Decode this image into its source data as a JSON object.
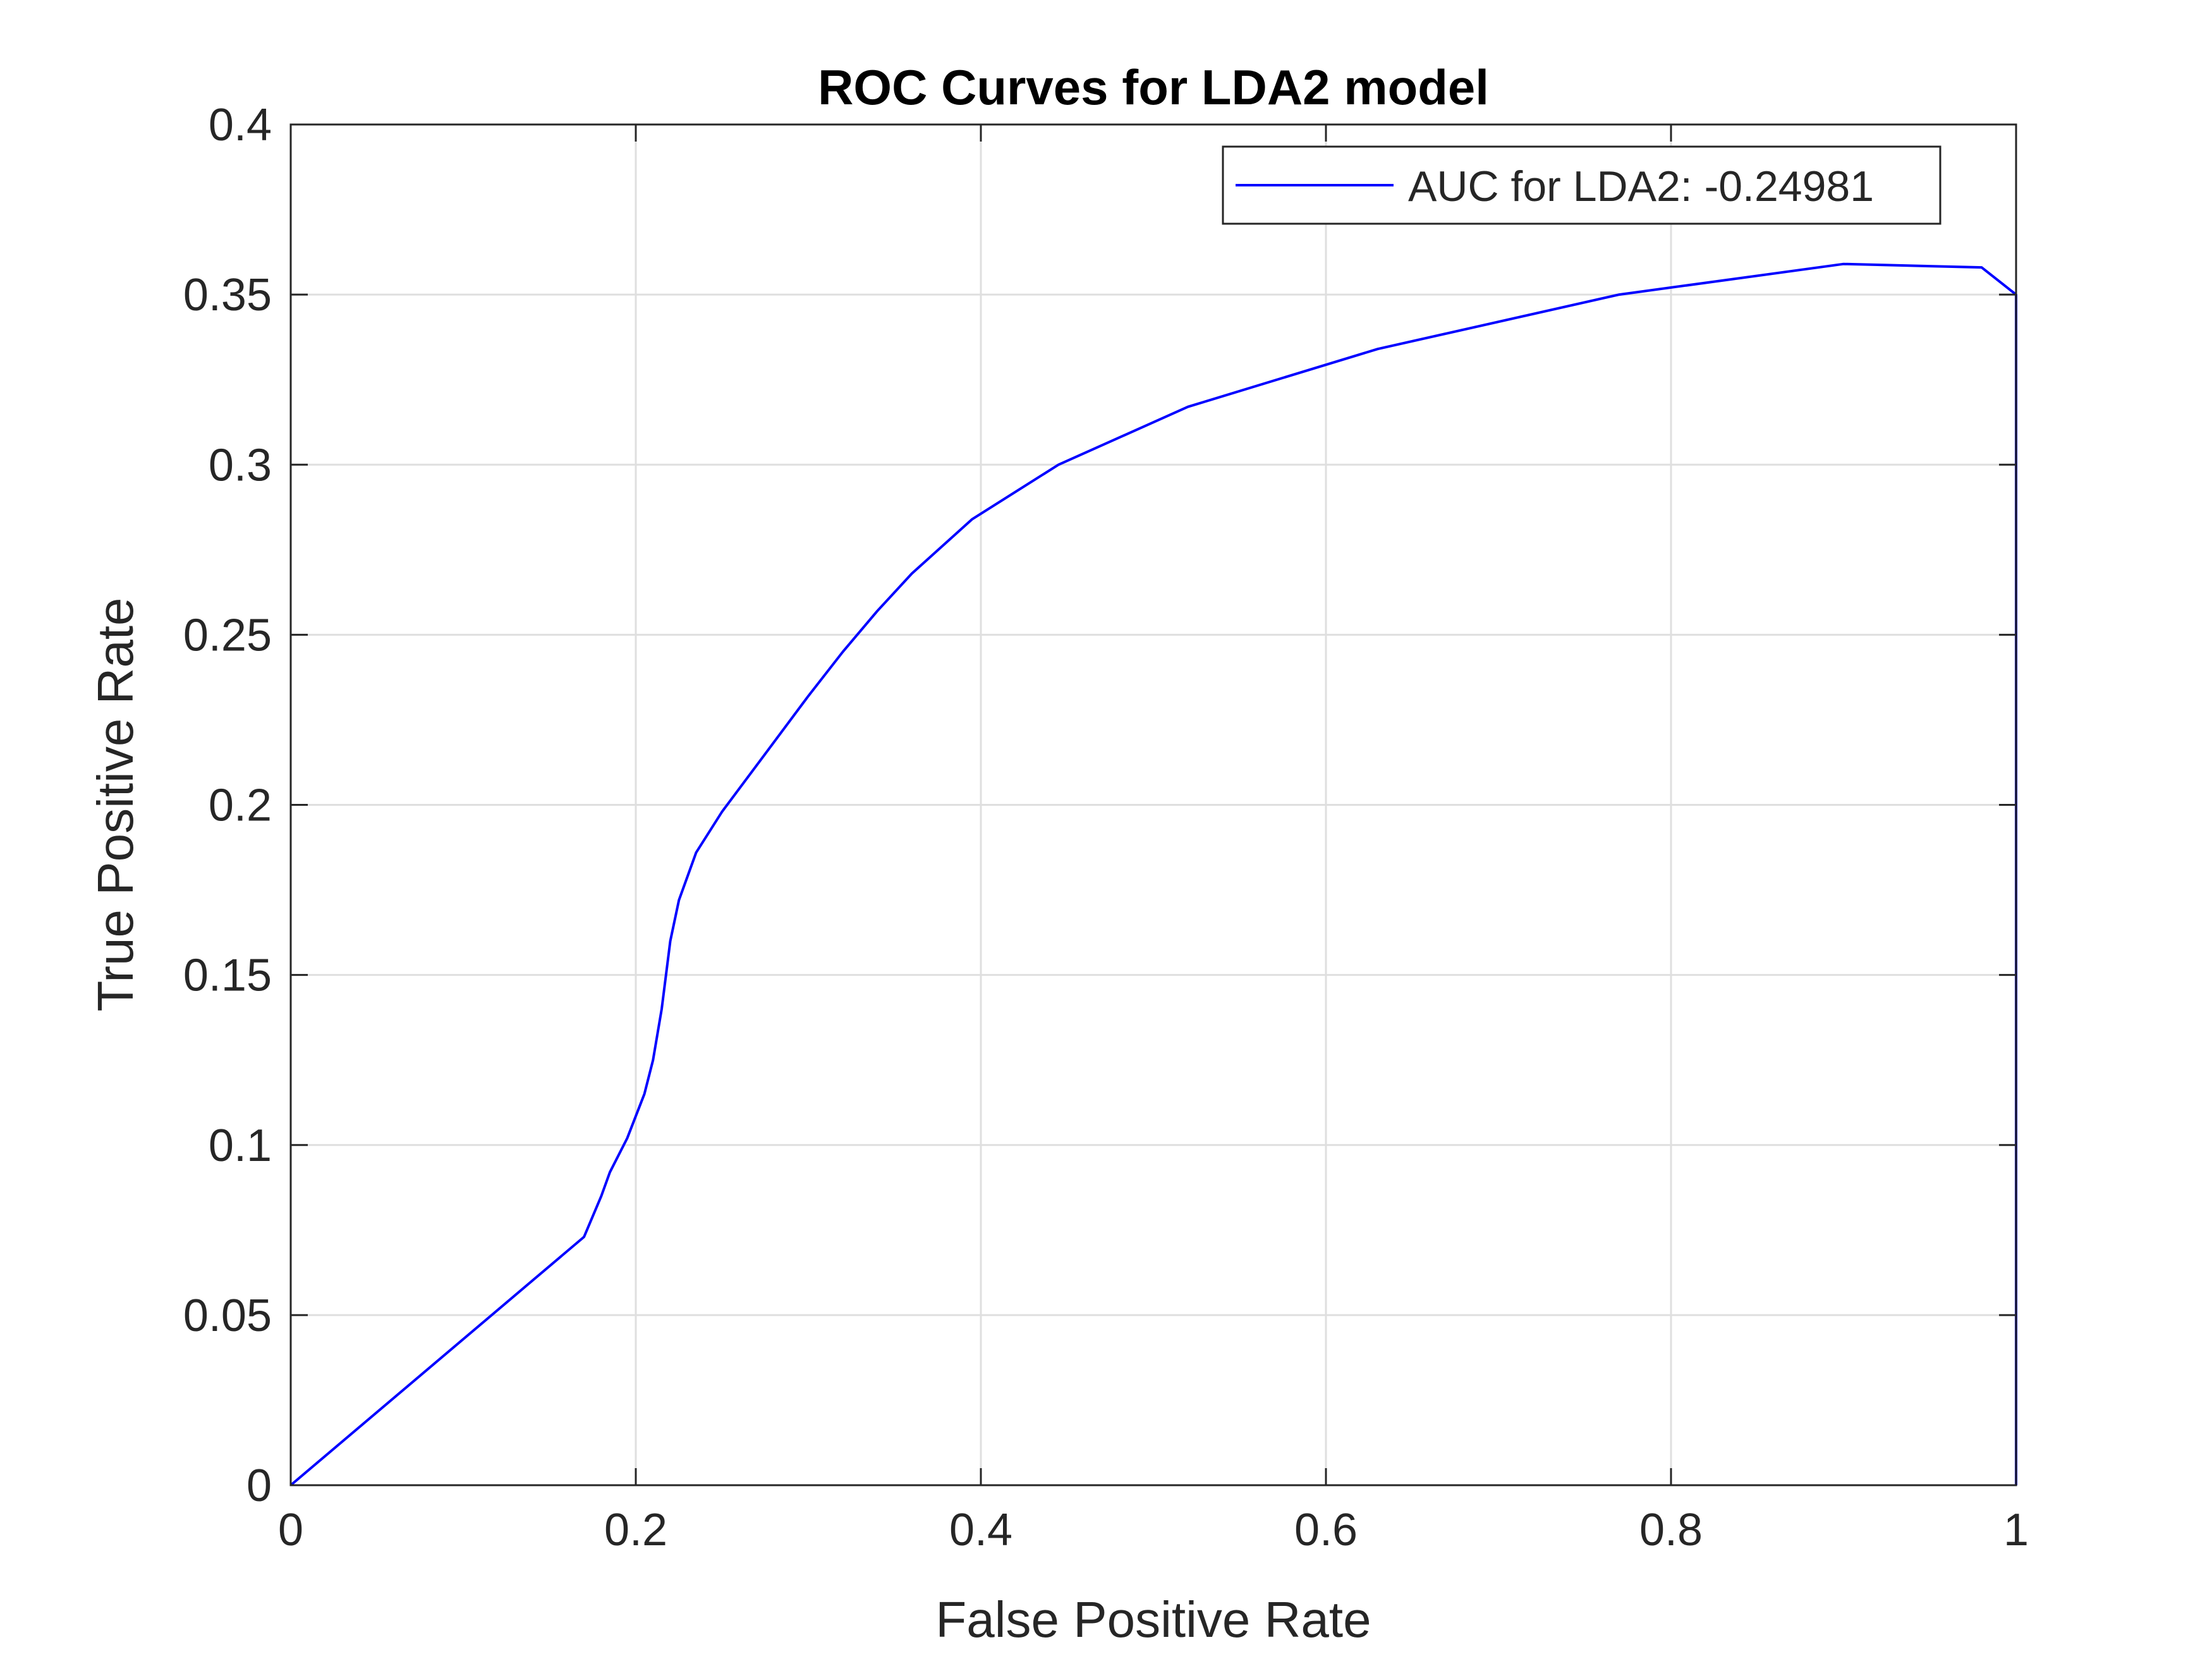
{
  "chart_data": {
    "type": "line",
    "title": "ROC Curves for LDA2 model",
    "xlabel": "False Positive Rate",
    "ylabel": "True Positive Rate",
    "xlim": [
      0,
      1
    ],
    "ylim": [
      0,
      0.4
    ],
    "xticks": [
      0,
      0.2,
      0.4,
      0.6,
      0.8,
      1
    ],
    "xtick_labels": [
      "0",
      "0.2",
      "0.4",
      "0.6",
      "0.8",
      "1"
    ],
    "yticks": [
      0,
      0.05,
      0.1,
      0.15,
      0.2,
      0.25,
      0.3,
      0.35,
      0.4
    ],
    "ytick_labels": [
      "0",
      "0.05",
      "0.1",
      "0.15",
      "0.2",
      "0.25",
      "0.3",
      "0.35",
      "0.4"
    ],
    "grid": true,
    "legend_position": "top-right",
    "series": [
      {
        "name": "AUC for LDA2: -0.24981",
        "color": "#0000ff",
        "x": [
          0,
          0.17,
          0.18,
          0.185,
          0.195,
          0.205,
          0.21,
          0.215,
          0.22,
          0.225,
          0.235,
          0.25,
          0.275,
          0.3,
          0.32,
          0.34,
          0.36,
          0.395,
          0.445,
          0.52,
          0.63,
          0.77,
          0.9,
          0.98,
          1.0,
          1.0
        ],
        "y": [
          0,
          0.073,
          0.085,
          0.092,
          0.102,
          0.115,
          0.125,
          0.14,
          0.16,
          0.172,
          0.186,
          0.198,
          0.215,
          0.232,
          0.245,
          0.257,
          0.268,
          0.284,
          0.3,
          0.317,
          0.334,
          0.35,
          0.359,
          0.358,
          0.35,
          0
        ]
      }
    ]
  }
}
